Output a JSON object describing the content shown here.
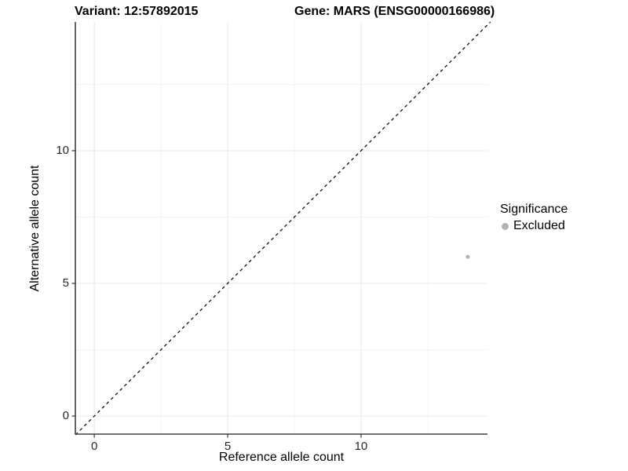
{
  "chart_data": {
    "type": "scatter",
    "title_left": "Variant: 12:57892015",
    "title_right": "Gene: MARS (ENSG00000166986)",
    "xlabel": "Reference allele count",
    "ylabel": "Alternative allele count",
    "xlim": [
      -0.71,
      14.74
    ],
    "ylim": [
      -0.68,
      14.85
    ],
    "x_ticks": [
      0,
      5,
      10
    ],
    "y_ticks": [
      0,
      5,
      10
    ],
    "x_minor_ticks": [
      2.5,
      7.5,
      12.5
    ],
    "y_minor_ticks": [
      2.5,
      7.5,
      12.5
    ],
    "grid": true,
    "legend_position": "right",
    "identity_line": {
      "type": "y=x",
      "style": "dashed",
      "color": "#000000"
    },
    "series": [
      {
        "name": "Excluded",
        "color": "#b3b3b3",
        "point_radius": 2.5,
        "points": [
          {
            "x": 14,
            "y": 6
          }
        ]
      }
    ],
    "legend": {
      "title": "Significance",
      "entries": [
        {
          "label": "Excluded",
          "color": "#b3b3b3"
        }
      ]
    }
  },
  "colors": {
    "background": "#ffffff",
    "grid_major": "#e8e8e8",
    "grid_minor": "#f3f3f3",
    "axis_line": "#404040",
    "tick_mark": "#333333",
    "tick_label": "#262626"
  }
}
